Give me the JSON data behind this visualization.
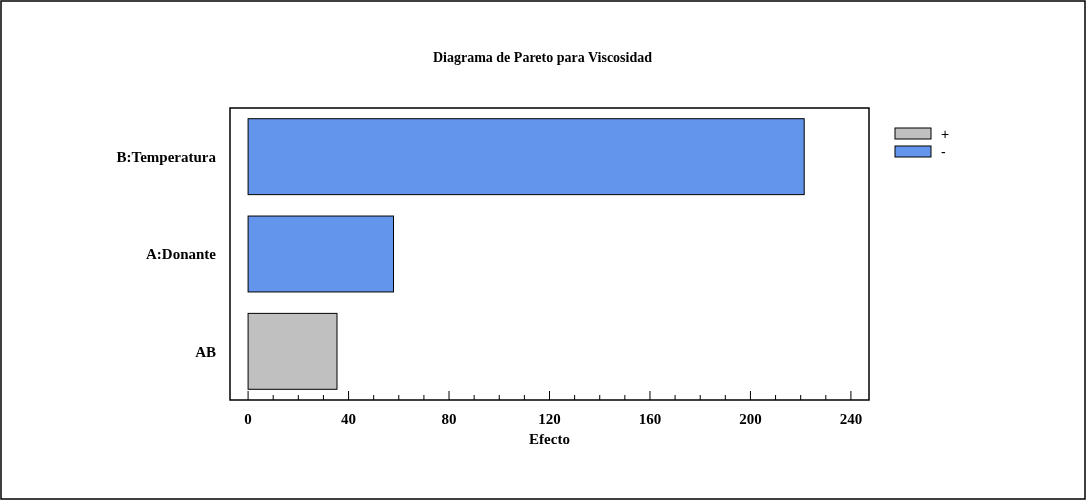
{
  "chart_data": {
    "type": "bar",
    "orientation": "horizontal",
    "title": "Diagrama de Pareto para Viscosidad",
    "xlabel": "Efecto",
    "categories": [
      "B:Temperatura",
      "A:Donante",
      "AB"
    ],
    "series": [
      {
        "name": "+",
        "color": "#c0c0c0",
        "values": [
          null,
          null,
          35.4
        ]
      },
      {
        "name": "-",
        "color": "#6495ed",
        "values": [
          221.4,
          57.9,
          null
        ]
      }
    ],
    "xlim": [
      -7.2,
      247.2
    ],
    "xticks": [
      0,
      {
        "value": 10,
        "label": null
      },
      {
        "value": 20,
        "label": null
      },
      {
        "value": 30,
        "label": null
      },
      40,
      {
        "value": 50,
        "label": null
      },
      {
        "value": 60,
        "label": null
      },
      {
        "value": 70,
        "label": null
      },
      80,
      {
        "value": 90,
        "label": null
      },
      {
        "value": 100,
        "label": null
      },
      {
        "value": 110,
        "label": null
      },
      120,
      {
        "value": 130,
        "label": null
      },
      {
        "value": 140,
        "label": null
      },
      {
        "value": 150,
        "label": null
      },
      160,
      {
        "value": 170,
        "label": null
      },
      {
        "value": 180,
        "label": null
      },
      {
        "value": 190,
        "label": null
      },
      200,
      {
        "value": 210,
        "label": null
      },
      {
        "value": 220,
        "label": null
      },
      {
        "value": 230,
        "label": null
      },
      240
    ],
    "grid": false,
    "legend": "top right"
  }
}
